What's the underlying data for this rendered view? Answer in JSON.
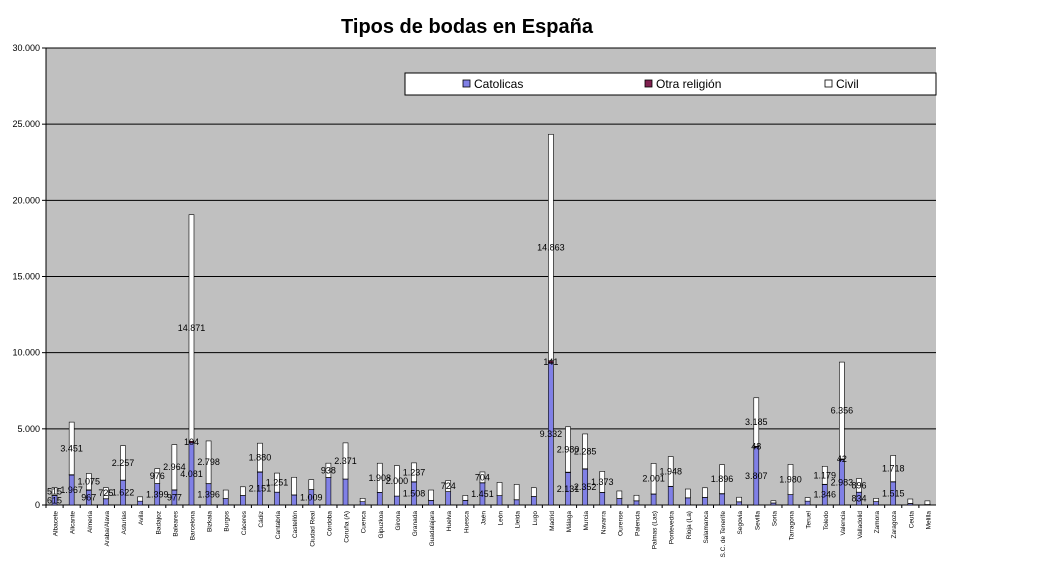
{
  "chart_data": {
    "type": "bar",
    "stacked": true,
    "title": "Tipos de bodas en España",
    "xlabel": "",
    "ylabel": "",
    "ylim": [
      0,
      30000
    ],
    "yticks": [
      "0",
      "5.000",
      "10.000",
      "15.000",
      "20.000",
      "25.000",
      "30.000"
    ],
    "grid": "horizontal",
    "legend_position": "top-right",
    "colors": {
      "plot_bg": "#C0C0C0",
      "Catolicas": "#8080E6",
      "Otra religión": "#802050",
      "Civil": "#FFFFFF",
      "border": "#000000"
    },
    "categories": [
      "Albacete",
      "Alicante",
      "Almeria",
      "Araba/Alava",
      "Asturias",
      "Avila",
      "Badajoz",
      "Baleares",
      "Barcelona",
      "Bizkaia",
      "Burgos",
      "Cáceres",
      "Cádiz",
      "Cantabria",
      "Castellón",
      "Ciudad Real",
      "Córdoba",
      "Coruña (A)",
      "Cuenca",
      "Gipuzkoa",
      "Girona",
      "Granada",
      "Guadalajara",
      "Huelva",
      "Huesca",
      "Jaén",
      "León",
      "Lleida",
      "Lugo",
      "Madrid",
      "Málaga",
      "Murcia",
      "Navarra",
      "Ourense",
      "Palencia",
      "Palmas (Las)",
      "Pontevedra",
      "Rioja (La)",
      "Salamanca",
      "S.C. de Tenerife",
      "Segovia",
      "Sevilla",
      "Soria",
      "Tarragona",
      "Teruel",
      "Toledo",
      "Valencia",
      "Valladolid",
      "Zamora",
      "Zaragoza",
      "Ceuta",
      "Melilla"
    ],
    "series": [
      {
        "name": "Catolicas",
        "values": [
          615,
          1967,
          967,
          407,
          1622,
          249,
          1399,
          977,
          4081,
          1396,
          421,
          619,
          2151,
          836,
          654,
          1009,
          1797,
          1697,
          218,
          829,
          579,
          1508,
          296,
          873,
          303,
          1451,
          612,
          340,
          556,
          9332,
          2131,
          2352,
          825,
          422,
          273,
          707,
          1218,
          469,
          495,
          731,
          208,
          3807,
          133,
          677,
          249,
          1346,
          2983,
          834,
          222,
          1515,
          97,
          29
        ]
      },
      {
        "name": "Otra religión",
        "values": [
          14,
          23,
          28,
          6,
          14,
          2,
          10,
          20,
          104,
          12,
          4,
          6,
          26,
          8,
          10,
          6,
          10,
          10,
          3,
          5,
          8,
          20,
          4,
          8,
          2,
          15,
          6,
          8,
          4,
          141,
          26,
          28,
          6,
          4,
          4,
          20,
          12,
          4,
          4,
          20,
          4,
          48,
          2,
          8,
          4,
          16,
          42,
          8,
          2,
          18,
          6,
          4
        ]
      },
      {
        "name": "Civil",
        "values": [
          515,
          3451,
          1075,
          725,
          2257,
          286,
          976,
          2964,
          14871,
          2798,
          557,
          571,
          1880,
          1251,
          1156,
          647,
          938,
          2371,
          216,
          1908,
          2000,
          1237,
          682,
          724,
          323,
          704,
          865,
          1004,
          574,
          14863,
          2980,
          2285,
          1373,
          495,
          362,
          2001,
          1948,
          576,
          633,
          1896,
          298,
          3185,
          143,
          1980,
          233,
          1179,
          6356,
          896,
          211,
          1718,
          290,
          238
        ]
      }
    ],
    "data_labels": [
      {
        "category_index": 0,
        "series": "Catolicas",
        "text": "615"
      },
      {
        "category_index": 0,
        "series": "Civil",
        "text": "515"
      },
      {
        "category_index": 1,
        "series": "Catolicas",
        "text": "1.967"
      },
      {
        "category_index": 1,
        "series": "Civil",
        "text": "3.451"
      },
      {
        "category_index": 2,
        "series": "Catolicas",
        "text": "967"
      },
      {
        "category_index": 2,
        "series": "Civil",
        "text": "1.075"
      },
      {
        "category_index": 3,
        "series": "Civil",
        "text": "725"
      },
      {
        "category_index": 4,
        "series": "Catolicas",
        "text": "1.622"
      },
      {
        "category_index": 4,
        "series": "Civil",
        "text": "2.257"
      },
      {
        "category_index": 6,
        "series": "Catolicas",
        "text": "1.399"
      },
      {
        "category_index": 6,
        "series": "Civil",
        "text": "976"
      },
      {
        "category_index": 7,
        "series": "Catolicas",
        "text": "977"
      },
      {
        "category_index": 7,
        "series": "Civil",
        "text": "2.964"
      },
      {
        "category_index": 8,
        "series": "Catolicas",
        "text": "4.081"
      },
      {
        "category_index": 8,
        "series": "Otra religión",
        "text": "104"
      },
      {
        "category_index": 8,
        "series": "Civil",
        "text": "14.871"
      },
      {
        "category_index": 9,
        "series": "Catolicas",
        "text": "1.396"
      },
      {
        "category_index": 9,
        "series": "Civil",
        "text": "2.798"
      },
      {
        "category_index": 12,
        "series": "Catolicas",
        "text": "2.151"
      },
      {
        "category_index": 12,
        "series": "Civil",
        "text": "1.880"
      },
      {
        "category_index": 13,
        "series": "Civil",
        "text": "1.251"
      },
      {
        "category_index": 15,
        "series": "Catolicas",
        "text": "1.009"
      },
      {
        "category_index": 16,
        "series": "Civil",
        "text": "938"
      },
      {
        "category_index": 17,
        "series": "Civil",
        "text": "2.371"
      },
      {
        "category_index": 19,
        "series": "Civil",
        "text": "1.908"
      },
      {
        "category_index": 20,
        "series": "Civil",
        "text": "2.000"
      },
      {
        "category_index": 21,
        "series": "Catolicas",
        "text": "1.508"
      },
      {
        "category_index": 21,
        "series": "Civil",
        "text": "1.237"
      },
      {
        "category_index": 23,
        "series": "Civil",
        "text": "724"
      },
      {
        "category_index": 25,
        "series": "Catolicas",
        "text": "1.451"
      },
      {
        "category_index": 25,
        "series": "Civil",
        "text": "704"
      },
      {
        "category_index": 29,
        "series": "Catolicas",
        "text": "9.332"
      },
      {
        "category_index": 29,
        "series": "Otra religión",
        "text": "141"
      },
      {
        "category_index": 29,
        "series": "Civil",
        "text": "14.863"
      },
      {
        "category_index": 30,
        "series": "Catolicas",
        "text": "2.131"
      },
      {
        "category_index": 30,
        "series": "Civil",
        "text": "2.980"
      },
      {
        "category_index": 31,
        "series": "Catolicas",
        "text": "2.352"
      },
      {
        "category_index": 31,
        "series": "Civil",
        "text": "2.285"
      },
      {
        "category_index": 32,
        "series": "Civil",
        "text": "1.373"
      },
      {
        "category_index": 35,
        "series": "Civil",
        "text": "2.001"
      },
      {
        "category_index": 36,
        "series": "Civil",
        "text": "1.948"
      },
      {
        "category_index": 39,
        "series": "Civil",
        "text": "1.896"
      },
      {
        "category_index": 41,
        "series": "Catolicas",
        "text": "3.807"
      },
      {
        "category_index": 41,
        "series": "Otra religión",
        "text": "48"
      },
      {
        "category_index": 41,
        "series": "Civil",
        "text": "3.185"
      },
      {
        "category_index": 43,
        "series": "Civil",
        "text": "1.980"
      },
      {
        "category_index": 45,
        "series": "Catolicas",
        "text": "1.346"
      },
      {
        "category_index": 45,
        "series": "Civil",
        "text": "1.179"
      },
      {
        "category_index": 46,
        "series": "Catolicas",
        "text": "2.983"
      },
      {
        "category_index": 46,
        "series": "Otra religión",
        "text": "42"
      },
      {
        "category_index": 46,
        "series": "Civil",
        "text": "6.356"
      },
      {
        "category_index": 47,
        "series": "Catolicas",
        "text": "834"
      },
      {
        "category_index": 47,
        "series": "Civil",
        "text": "896"
      },
      {
        "category_index": 49,
        "series": "Catolicas",
        "text": "1.515"
      },
      {
        "category_index": 49,
        "series": "Civil",
        "text": "1.718"
      }
    ]
  }
}
